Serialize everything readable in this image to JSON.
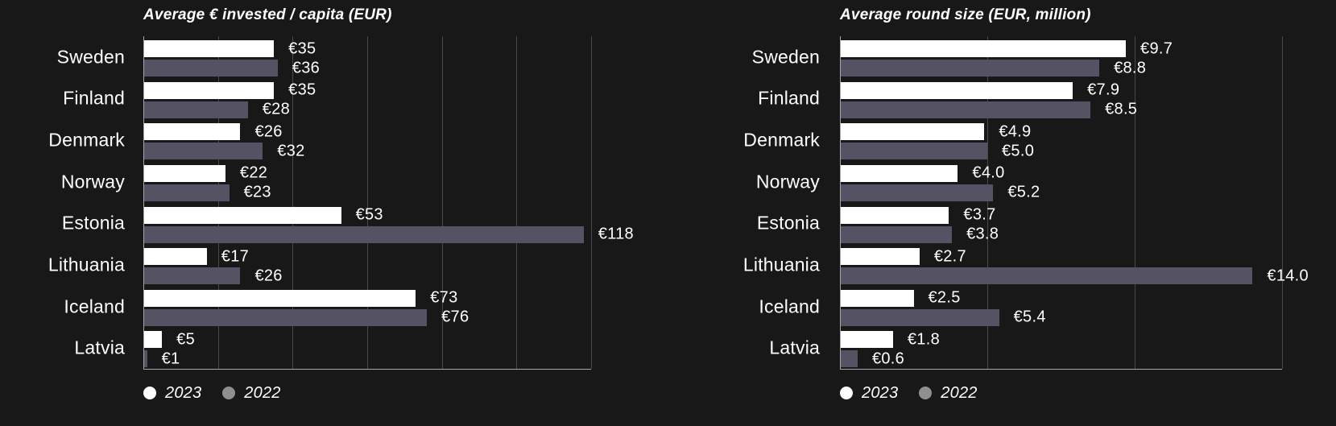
{
  "page": {
    "background_color": "#181818",
    "text_color": "#ffffff"
  },
  "legend": {
    "items": [
      {
        "label": "2023",
        "color": "#ffffff",
        "icon": "circle"
      },
      {
        "label": "2022",
        "color": "#8f8f8f",
        "icon": "circle"
      }
    ],
    "position": "bottom-left"
  },
  "chart_data": [
    {
      "type": "bar",
      "orientation": "horizontal",
      "title": "Average € invested / capita (EUR)",
      "categories": [
        "Sweden",
        "Finland",
        "Denmark",
        "Norway",
        "Estonia",
        "Lithuania",
        "Iceland",
        "Latvia"
      ],
      "series": [
        {
          "name": "2023",
          "color": "#ffffff",
          "values": [
            35,
            35,
            26,
            22,
            53,
            17,
            73,
            5
          ],
          "labels": [
            "€35",
            "€35",
            "€26",
            "€22",
            "€53",
            "€17",
            "€73",
            "€5"
          ]
        },
        {
          "name": "2022",
          "color": "#555263",
          "values": [
            36,
            28,
            32,
            23,
            118,
            26,
            76,
            1
          ],
          "labels": [
            "€36",
            "€28",
            "€32",
            "€23",
            "€118",
            "€26",
            "€76",
            "€1"
          ]
        }
      ],
      "xlim": [
        0,
        120
      ],
      "grid_step": 20,
      "grid": true,
      "value_prefix": "€",
      "legend_position": "bottom"
    },
    {
      "type": "bar",
      "orientation": "horizontal",
      "title": "Average round size (EUR, million)",
      "categories": [
        "Sweden",
        "Finland",
        "Denmark",
        "Norway",
        "Estonia",
        "Lithuania",
        "Iceland",
        "Latvia"
      ],
      "series": [
        {
          "name": "2023",
          "color": "#ffffff",
          "values": [
            9.7,
            7.9,
            4.9,
            4.0,
            3.7,
            2.7,
            2.5,
            1.8
          ],
          "labels": [
            "€9.7",
            "€7.9",
            "€4.9",
            "€4.0",
            "€3.7",
            "€2.7",
            "€2.5",
            "€1.8"
          ]
        },
        {
          "name": "2022",
          "color": "#555263",
          "values": [
            8.8,
            8.5,
            5.0,
            5.2,
            3.8,
            14.0,
            5.4,
            0.6
          ],
          "labels": [
            "€8.8",
            "€8.5",
            "€5.0",
            "€5.2",
            "€3.8",
            "€14.0",
            "€5.4",
            "€0.6"
          ]
        }
      ],
      "xlim": [
        0,
        15
      ],
      "grid_step": 5,
      "grid": true,
      "value_prefix": "€",
      "legend_position": "bottom"
    }
  ],
  "colors": {
    "bar_2023": "#ffffff",
    "bar_2022": "#555263",
    "gridline": "#47474c",
    "axis": "#a6a6a6",
    "legend_dot_2022": "#8f8f8f"
  }
}
